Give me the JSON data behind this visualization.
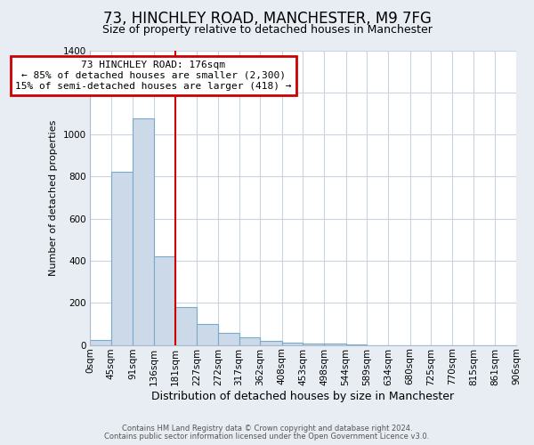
{
  "title": "73, HINCHLEY ROAD, MANCHESTER, M9 7FG",
  "subtitle": "Size of property relative to detached houses in Manchester",
  "xlabel": "Distribution of detached houses by size in Manchester",
  "ylabel": "Number of detached properties",
  "bar_color": "#ccd9e8",
  "bar_edge_color": "#7aaacb",
  "fig_background_color": "#e8edf4",
  "plot_background_color": "#ffffff",
  "grid_color": "#c8d4e0",
  "annotation_box_color": "#ffffff",
  "annotation_box_edge": "#cc0000",
  "vline_color": "#cc0000",
  "vline_x": 181,
  "bin_edges": [
    0,
    45,
    91,
    136,
    181,
    227,
    272,
    317,
    362,
    408,
    453,
    498,
    544,
    589,
    634,
    680,
    725,
    770,
    815,
    861,
    906
  ],
  "bar_heights": [
    25,
    825,
    1075,
    420,
    180,
    100,
    58,
    35,
    18,
    12,
    8,
    5,
    2,
    0,
    0,
    0,
    0,
    0,
    0,
    0
  ],
  "ylim": [
    0,
    1400
  ],
  "yticks": [
    0,
    200,
    400,
    600,
    800,
    1000,
    1200,
    1400
  ],
  "xtick_labels": [
    "0sqm",
    "45sqm",
    "91sqm",
    "136sqm",
    "181sqm",
    "227sqm",
    "272sqm",
    "317sqm",
    "362sqm",
    "408sqm",
    "453sqm",
    "498sqm",
    "544sqm",
    "589sqm",
    "634sqm",
    "680sqm",
    "725sqm",
    "770sqm",
    "815sqm",
    "861sqm",
    "906sqm"
  ],
  "annot_line1": "73 HINCHLEY ROAD: 176sqm",
  "annot_line2": "← 85% of detached houses are smaller (2,300)",
  "annot_line3": "15% of semi-detached houses are larger (418) →",
  "footer1": "Contains HM Land Registry data © Crown copyright and database right 2024.",
  "footer2": "Contains public sector information licensed under the Open Government Licence v3.0.",
  "title_fontsize": 12,
  "subtitle_fontsize": 9,
  "ylabel_fontsize": 8,
  "xlabel_fontsize": 9,
  "tick_fontsize": 7.5,
  "annot_fontsize": 8,
  "footer_fontsize": 6
}
